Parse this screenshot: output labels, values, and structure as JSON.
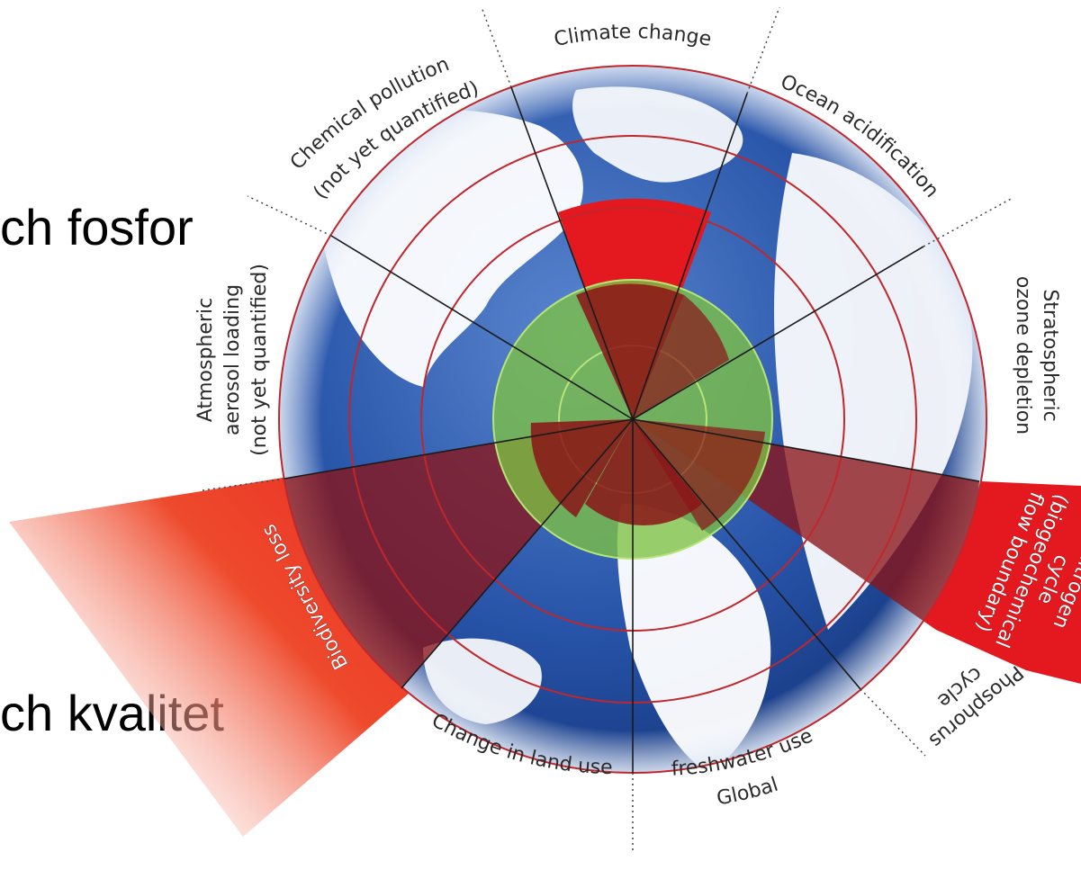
{
  "overlay": {
    "line1": "ch fosfor",
    "line2": "ch kvalitet"
  },
  "labels": {
    "climate": "Climate change",
    "ocean_acidification": "Ocean acidification",
    "ozone_1": "Stratospheric",
    "ozone_2": "ozone depletion",
    "nitrogen_1": "Nitrogen",
    "nitrogen_2": "cycle",
    "nitrogen_3": "(biogeochemical",
    "nitrogen_4": "flow boundary)",
    "phosphorus_1": "Phosphorus",
    "phosphorus_2": "cycle",
    "freshwater_1": "Global",
    "freshwater_2": "freshwater use",
    "land_use": "Change in land use",
    "biodiversity": "Biodiversity loss",
    "aerosol_1": "Atmospheric",
    "aerosol_2": "aerosol loading",
    "aerosol_3": "(not yet quantified)",
    "chemical_1": "Chemical pollution",
    "chemical_2": "(not yet quantified)"
  },
  "colors": {
    "ocean": "#2a5db0",
    "land": "#ffffff",
    "safe_zone": "#7cc242",
    "exceeded": "#e4181f",
    "grid": "#c0272d"
  }
}
